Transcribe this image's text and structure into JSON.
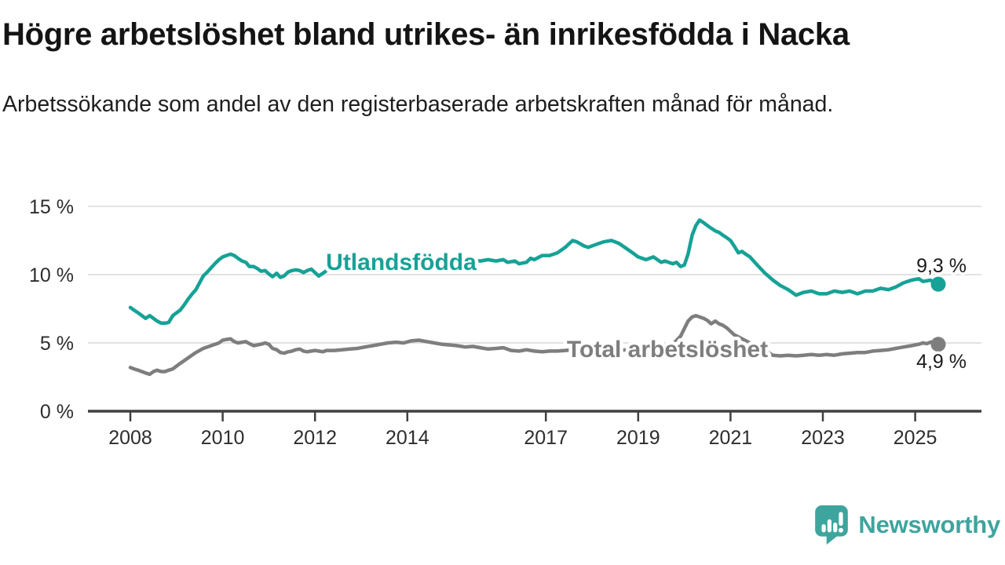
{
  "header": {
    "title": "Högre arbetslöshet bland utrikes- än inrikesfödda i Nacka",
    "subtitle": "Arbetssökande som andel av den registerbaserade arbetskraften månad för månad."
  },
  "chart_data": {
    "type": "line",
    "title": "Högre arbetslöshet bland utrikes- än inrikesfödda i Nacka",
    "subtitle": "Arbetssökande som andel av den registerbaserade arbetskraften månad för månad.",
    "unit": "%",
    "grid": "horizontal",
    "x_axis": {
      "range": [
        2007.1,
        2026.4
      ],
      "tick_years": [
        2008,
        2010,
        2012,
        2014,
        2017,
        2019,
        2021,
        2023,
        2025
      ]
    },
    "y_axis": {
      "range": [
        0,
        15.5
      ],
      "ticks": [
        {
          "value": 0,
          "label": "0 %"
        },
        {
          "value": 5,
          "label": "5 %"
        },
        {
          "value": 10,
          "label": "10 %"
        },
        {
          "value": 15,
          "label": "15 %"
        }
      ]
    },
    "colors": {
      "utlandsfodda": "#16a296",
      "total": "#7e7e7e",
      "gridline": "#d9d9d9",
      "axis": "#404040",
      "tick_text": "#2d2d2d",
      "value_label_text": "#1b1b1b"
    },
    "series": [
      {
        "name": "Utlandsfödda",
        "color": "#16a296",
        "end_value": 9.3,
        "end_label": "9,3 %",
        "points": [
          [
            2008.0,
            7.6
          ],
          [
            2008.08,
            7.4
          ],
          [
            2008.17,
            7.2
          ],
          [
            2008.25,
            7.0
          ],
          [
            2008.33,
            6.8
          ],
          [
            2008.42,
            7.0
          ],
          [
            2008.5,
            6.8
          ],
          [
            2008.58,
            6.6
          ],
          [
            2008.67,
            6.45
          ],
          [
            2008.75,
            6.45
          ],
          [
            2008.83,
            6.5
          ],
          [
            2008.92,
            7.0
          ],
          [
            2009.0,
            7.2
          ],
          [
            2009.08,
            7.4
          ],
          [
            2009.17,
            7.8
          ],
          [
            2009.25,
            8.2
          ],
          [
            2009.33,
            8.55
          ],
          [
            2009.42,
            8.9
          ],
          [
            2009.5,
            9.4
          ],
          [
            2009.58,
            9.9
          ],
          [
            2009.67,
            10.2
          ],
          [
            2009.75,
            10.5
          ],
          [
            2009.83,
            10.8
          ],
          [
            2009.92,
            11.1
          ],
          [
            2010.0,
            11.3
          ],
          [
            2010.08,
            11.4
          ],
          [
            2010.17,
            11.5
          ],
          [
            2010.25,
            11.4
          ],
          [
            2010.33,
            11.2
          ],
          [
            2010.42,
            11.0
          ],
          [
            2010.5,
            10.9
          ],
          [
            2010.58,
            10.6
          ],
          [
            2010.67,
            10.6
          ],
          [
            2010.75,
            10.45
          ],
          [
            2010.83,
            10.25
          ],
          [
            2010.92,
            10.3
          ],
          [
            2011.0,
            10.05
          ],
          [
            2011.08,
            9.85
          ],
          [
            2011.17,
            10.1
          ],
          [
            2011.25,
            9.8
          ],
          [
            2011.33,
            9.9
          ],
          [
            2011.42,
            10.2
          ],
          [
            2011.5,
            10.3
          ],
          [
            2011.58,
            10.35
          ],
          [
            2011.67,
            10.3
          ],
          [
            2011.75,
            10.15
          ],
          [
            2011.83,
            10.3
          ],
          [
            2011.92,
            10.4
          ],
          [
            2012.0,
            10.15
          ],
          [
            2012.08,
            9.9
          ],
          [
            2012.17,
            10.1
          ],
          [
            2012.25,
            10.3
          ],
          [
            2012.42,
            10.6
          ],
          [
            2012.58,
            10.8
          ],
          [
            2012.75,
            10.6
          ],
          [
            2012.92,
            10.7
          ],
          [
            2013.17,
            10.9
          ],
          [
            2013.42,
            11.0
          ],
          [
            2013.67,
            10.9
          ],
          [
            2013.92,
            11.0
          ],
          [
            2014.17,
            11.1
          ],
          [
            2014.42,
            10.9
          ],
          [
            2014.67,
            10.8
          ],
          [
            2014.92,
            10.9
          ],
          [
            2015.17,
            11.0
          ],
          [
            2015.42,
            11.05
          ],
          [
            2015.58,
            11.0
          ],
          [
            2015.75,
            11.1
          ],
          [
            2015.92,
            11.0
          ],
          [
            2016.08,
            11.1
          ],
          [
            2016.17,
            10.9
          ],
          [
            2016.33,
            11.0
          ],
          [
            2016.42,
            10.8
          ],
          [
            2016.58,
            10.9
          ],
          [
            2016.67,
            11.2
          ],
          [
            2016.75,
            11.1
          ],
          [
            2016.92,
            11.4
          ],
          [
            2017.08,
            11.4
          ],
          [
            2017.25,
            11.6
          ],
          [
            2017.42,
            12.0
          ],
          [
            2017.58,
            12.5
          ],
          [
            2017.67,
            12.4
          ],
          [
            2017.83,
            12.1
          ],
          [
            2017.92,
            12.0
          ],
          [
            2018.08,
            12.2
          ],
          [
            2018.25,
            12.4
          ],
          [
            2018.42,
            12.5
          ],
          [
            2018.58,
            12.3
          ],
          [
            2018.75,
            11.9
          ],
          [
            2018.92,
            11.5
          ],
          [
            2019.0,
            11.3
          ],
          [
            2019.17,
            11.1
          ],
          [
            2019.33,
            11.3
          ],
          [
            2019.5,
            10.9
          ],
          [
            2019.58,
            11.0
          ],
          [
            2019.75,
            10.8
          ],
          [
            2019.83,
            10.9
          ],
          [
            2019.92,
            10.6
          ],
          [
            2020.0,
            10.7
          ],
          [
            2020.08,
            11.5
          ],
          [
            2020.17,
            12.9
          ],
          [
            2020.25,
            13.6
          ],
          [
            2020.33,
            14.0
          ],
          [
            2020.42,
            13.8
          ],
          [
            2020.5,
            13.6
          ],
          [
            2020.58,
            13.4
          ],
          [
            2020.67,
            13.2
          ],
          [
            2020.75,
            13.1
          ],
          [
            2020.83,
            12.9
          ],
          [
            2020.92,
            12.7
          ],
          [
            2021.0,
            12.5
          ],
          [
            2021.08,
            12.1
          ],
          [
            2021.17,
            11.6
          ],
          [
            2021.25,
            11.7
          ],
          [
            2021.33,
            11.5
          ],
          [
            2021.42,
            11.3
          ],
          [
            2021.58,
            10.7
          ],
          [
            2021.75,
            10.1
          ],
          [
            2021.92,
            9.6
          ],
          [
            2022.08,
            9.2
          ],
          [
            2022.25,
            8.9
          ],
          [
            2022.42,
            8.5
          ],
          [
            2022.58,
            8.7
          ],
          [
            2022.75,
            8.8
          ],
          [
            2022.92,
            8.6
          ],
          [
            2023.08,
            8.6
          ],
          [
            2023.25,
            8.8
          ],
          [
            2023.42,
            8.7
          ],
          [
            2023.58,
            8.8
          ],
          [
            2023.75,
            8.6
          ],
          [
            2023.92,
            8.8
          ],
          [
            2024.08,
            8.8
          ],
          [
            2024.25,
            9.0
          ],
          [
            2024.42,
            8.9
          ],
          [
            2024.58,
            9.1
          ],
          [
            2024.75,
            9.4
          ],
          [
            2024.92,
            9.6
          ],
          [
            2025.08,
            9.7
          ],
          [
            2025.17,
            9.5
          ],
          [
            2025.33,
            9.6
          ],
          [
            2025.42,
            9.4
          ],
          [
            2025.5,
            9.3
          ]
        ]
      },
      {
        "name": "Total arbetslöshet",
        "color": "#7e7e7e",
        "end_value": 4.9,
        "end_label": "4,9 %",
        "points": [
          [
            2008.0,
            3.2
          ],
          [
            2008.08,
            3.1
          ],
          [
            2008.17,
            3.0
          ],
          [
            2008.25,
            2.9
          ],
          [
            2008.33,
            2.8
          ],
          [
            2008.42,
            2.7
          ],
          [
            2008.5,
            2.9
          ],
          [
            2008.58,
            3.0
          ],
          [
            2008.67,
            2.9
          ],
          [
            2008.75,
            2.9
          ],
          [
            2008.83,
            3.0
          ],
          [
            2008.92,
            3.1
          ],
          [
            2009.08,
            3.5
          ],
          [
            2009.25,
            3.9
          ],
          [
            2009.42,
            4.3
          ],
          [
            2009.58,
            4.6
          ],
          [
            2009.75,
            4.8
          ],
          [
            2009.92,
            5.0
          ],
          [
            2010.0,
            5.2
          ],
          [
            2010.08,
            5.25
          ],
          [
            2010.17,
            5.3
          ],
          [
            2010.25,
            5.1
          ],
          [
            2010.33,
            5.0
          ],
          [
            2010.42,
            5.05
          ],
          [
            2010.5,
            5.1
          ],
          [
            2010.58,
            4.95
          ],
          [
            2010.67,
            4.8
          ],
          [
            2010.75,
            4.85
          ],
          [
            2010.83,
            4.9
          ],
          [
            2010.92,
            5.0
          ],
          [
            2011.0,
            4.9
          ],
          [
            2011.08,
            4.6
          ],
          [
            2011.17,
            4.5
          ],
          [
            2011.25,
            4.3
          ],
          [
            2011.33,
            4.25
          ],
          [
            2011.42,
            4.35
          ],
          [
            2011.5,
            4.4
          ],
          [
            2011.58,
            4.5
          ],
          [
            2011.67,
            4.55
          ],
          [
            2011.75,
            4.4
          ],
          [
            2011.83,
            4.35
          ],
          [
            2011.92,
            4.4
          ],
          [
            2012.0,
            4.45
          ],
          [
            2012.08,
            4.4
          ],
          [
            2012.17,
            4.35
          ],
          [
            2012.25,
            4.45
          ],
          [
            2012.42,
            4.45
          ],
          [
            2012.58,
            4.5
          ],
          [
            2012.75,
            4.55
          ],
          [
            2012.92,
            4.6
          ],
          [
            2013.08,
            4.7
          ],
          [
            2013.25,
            4.8
          ],
          [
            2013.42,
            4.9
          ],
          [
            2013.58,
            5.0
          ],
          [
            2013.75,
            5.05
          ],
          [
            2013.92,
            5.0
          ],
          [
            2014.08,
            5.15
          ],
          [
            2014.25,
            5.2
          ],
          [
            2014.42,
            5.1
          ],
          [
            2014.58,
            5.0
          ],
          [
            2014.75,
            4.9
          ],
          [
            2014.92,
            4.85
          ],
          [
            2015.08,
            4.8
          ],
          [
            2015.25,
            4.7
          ],
          [
            2015.42,
            4.75
          ],
          [
            2015.58,
            4.65
          ],
          [
            2015.75,
            4.55
          ],
          [
            2015.92,
            4.6
          ],
          [
            2016.08,
            4.65
          ],
          [
            2016.25,
            4.45
          ],
          [
            2016.42,
            4.4
          ],
          [
            2016.58,
            4.5
          ],
          [
            2016.75,
            4.4
          ],
          [
            2016.92,
            4.35
          ],
          [
            2017.08,
            4.4
          ],
          [
            2017.25,
            4.4
          ],
          [
            2017.42,
            4.45
          ],
          [
            2017.58,
            4.5
          ],
          [
            2017.75,
            4.55
          ],
          [
            2017.92,
            4.5
          ],
          [
            2018.08,
            4.5
          ],
          [
            2018.25,
            4.55
          ],
          [
            2018.42,
            4.5
          ],
          [
            2018.58,
            4.45
          ],
          [
            2018.75,
            4.5
          ],
          [
            2018.92,
            4.5
          ],
          [
            2019.08,
            4.5
          ],
          [
            2019.25,
            4.55
          ],
          [
            2019.42,
            4.6
          ],
          [
            2019.58,
            4.7
          ],
          [
            2019.75,
            4.9
          ],
          [
            2019.92,
            5.5
          ],
          [
            2020.08,
            6.6
          ],
          [
            2020.17,
            6.9
          ],
          [
            2020.25,
            7.0
          ],
          [
            2020.33,
            6.9
          ],
          [
            2020.42,
            6.8
          ],
          [
            2020.5,
            6.65
          ],
          [
            2020.58,
            6.4
          ],
          [
            2020.67,
            6.6
          ],
          [
            2020.75,
            6.4
          ],
          [
            2020.83,
            6.3
          ],
          [
            2020.92,
            6.1
          ],
          [
            2021.08,
            5.6
          ],
          [
            2021.25,
            5.3
          ],
          [
            2021.42,
            5.0
          ],
          [
            2021.58,
            4.7
          ],
          [
            2021.75,
            4.4
          ],
          [
            2021.92,
            4.1
          ],
          [
            2022.08,
            4.05
          ],
          [
            2022.25,
            4.1
          ],
          [
            2022.42,
            4.05
          ],
          [
            2022.58,
            4.1
          ],
          [
            2022.75,
            4.15
          ],
          [
            2022.92,
            4.1
          ],
          [
            2023.08,
            4.15
          ],
          [
            2023.25,
            4.1
          ],
          [
            2023.42,
            4.2
          ],
          [
            2023.58,
            4.25
          ],
          [
            2023.75,
            4.3
          ],
          [
            2023.92,
            4.3
          ],
          [
            2024.08,
            4.4
          ],
          [
            2024.25,
            4.45
          ],
          [
            2024.42,
            4.5
          ],
          [
            2024.58,
            4.6
          ],
          [
            2024.75,
            4.7
          ],
          [
            2024.92,
            4.8
          ],
          [
            2025.08,
            4.9
          ],
          [
            2025.17,
            5.0
          ],
          [
            2025.25,
            4.95
          ],
          [
            2025.33,
            5.05
          ],
          [
            2025.42,
            5.1
          ],
          [
            2025.5,
            4.9
          ]
        ]
      }
    ],
    "legend_position": "inline-on-line"
  },
  "footer": {
    "brand": "Newsworthy",
    "brand_color": "#3ea49e",
    "logo_icon": "bar-chart-speech-bubble"
  }
}
